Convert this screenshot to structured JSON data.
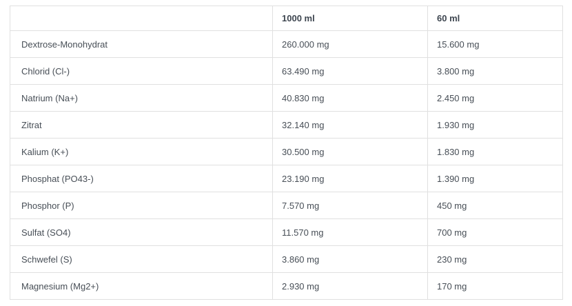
{
  "chart_data": {
    "type": "table",
    "title": "",
    "columns": [
      "",
      "1000 ml",
      "60 ml"
    ],
    "rows": [
      [
        "Dextrose-Monohydrat",
        "260.000 mg",
        "15.600 mg"
      ],
      [
        "Chlorid (Cl-)",
        "63.490 mg",
        "3.800 mg"
      ],
      [
        "Natrium (Na+)",
        "40.830 mg",
        "2.450 mg"
      ],
      [
        "Zitrat",
        "32.140 mg",
        "1.930 mg"
      ],
      [
        "Kalium (K+)",
        "30.500 mg",
        "1.830 mg"
      ],
      [
        "Phosphat (PO43-)",
        "23.190 mg",
        "1.390 mg"
      ],
      [
        "Phosphor (P)",
        "7.570 mg",
        "450 mg"
      ],
      [
        "Sulfat (SO4)",
        "11.570 mg",
        "700 mg"
      ],
      [
        "Schwefel (S)",
        "3.860 mg",
        "230 mg"
      ],
      [
        "Magnesium (Mg2+)",
        "2.930 mg",
        "170 mg"
      ]
    ],
    "layout": {
      "grid": "full-borders",
      "border_color": "#e0e0e0",
      "text_color": "#474e56",
      "header_text_color": "#3e4650",
      "background": "#ffffff"
    }
  }
}
